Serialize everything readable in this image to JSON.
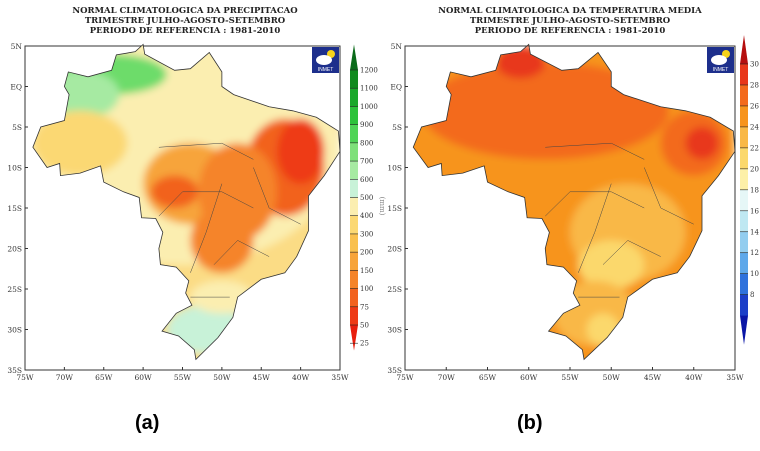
{
  "panel_a": {
    "title": [
      "NORMAL CLIMATOLOGICA DA PRECIPITACAO",
      "TRIMESTRE JULHO-AGOSTO-SETEMBRO",
      "PERIODO DE REFERENCIA : 1981-2010"
    ],
    "caption": "(a)",
    "unit": "(mm)",
    "logo": "INMET",
    "colorbar_labels": [
      "1200",
      "1100",
      "1000",
      "900",
      "800",
      "700",
      "600",
      "500",
      "400",
      "300",
      "200",
      "150",
      "100",
      "75",
      "50",
      "25"
    ],
    "colors": [
      "#0b6b1a",
      "#108a1e",
      "#19a82a",
      "#2cc23a",
      "#4fd456",
      "#7ee07a",
      "#a6eaa2",
      "#c8f2d8",
      "#fbeeb0",
      "#fbd873",
      "#f9c04e",
      "#f7a43a",
      "#f5842a",
      "#f2621f",
      "#ee3a16",
      "#e81e0e"
    ]
  },
  "panel_b": {
    "title": [
      "NORMAL CLIMATOLOGICA DA TEMPERATURA MEDIA",
      "TRIMESTRE JULHO-AGOSTO-SETEMBRO",
      "PERIODO DE REFERENCIA : 1981-2010"
    ],
    "caption": "(b)",
    "logo": "INMET",
    "colorbar_labels": [
      "30",
      "28",
      "26",
      "24",
      "22",
      "20",
      "18",
      "16",
      "14",
      "12",
      "10",
      "8"
    ],
    "colors": [
      "#b50f0f",
      "#e8371a",
      "#f36a1c",
      "#f7941d",
      "#f9b846",
      "#fbd86c",
      "#fdf0a8",
      "#e6f7f7",
      "#bfe8f2",
      "#93cdef",
      "#5ea8ea",
      "#2f72dc",
      "#1c3fc8",
      "#0a16a6"
    ]
  },
  "axes": {
    "lon_labels": [
      "75W",
      "70W",
      "65W",
      "60W",
      "55W",
      "50W",
      "45W",
      "40W",
      "35W"
    ],
    "lat_labels": [
      "5N",
      "EQ",
      "5S",
      "10S",
      "15S",
      "20S",
      "25S",
      "30S",
      "35S"
    ]
  }
}
